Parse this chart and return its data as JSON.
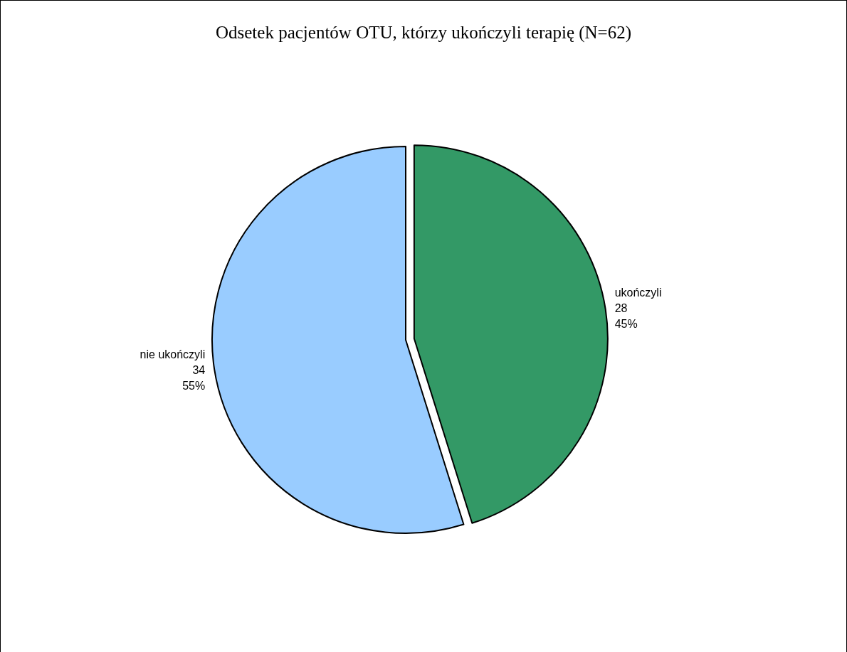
{
  "chart_data": {
    "type": "pie",
    "title": "Odsetek pacjentów OTU, którzy ukończyli terapię (N=62)",
    "categories": [
      "ukończyli",
      "nie ukończyli"
    ],
    "values": [
      28,
      34
    ],
    "colors": [
      "#339966",
      "#99ccff"
    ],
    "value_labels": [
      "28\n45%",
      "34\n55%"
    ],
    "legend": false
  }
}
